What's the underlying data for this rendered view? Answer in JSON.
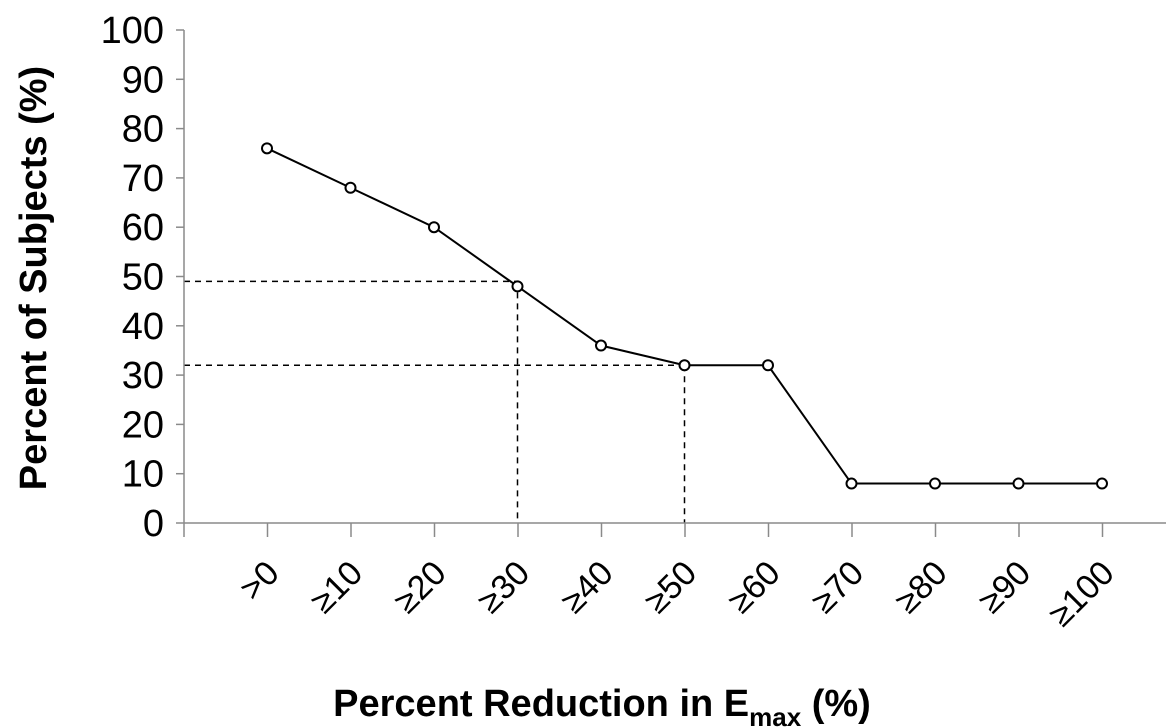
{
  "chart_data": {
    "type": "line",
    "title": "",
    "xlabel": "Percent Reduction in E",
    "xlabel_sub": "max",
    "xlabel_suffix": " (%)",
    "ylabel": "Percent of Subjects (%)",
    "ylim": [
      0,
      100
    ],
    "yticks": [
      0,
      10,
      20,
      30,
      40,
      50,
      60,
      70,
      80,
      90,
      100
    ],
    "categories": [
      ">0",
      "≥10",
      "≥20",
      "≥30",
      "≥40",
      "≥50",
      "≥60",
      "≥70",
      "≥80",
      "≥90",
      "≥100"
    ],
    "series": [
      {
        "values": [
          76,
          68,
          60,
          48,
          36,
          32,
          32,
          8,
          8,
          8,
          8
        ]
      }
    ],
    "reference_lines": [
      {
        "category": "≥30",
        "value": 49
      },
      {
        "category": "≥50",
        "value": 32
      }
    ],
    "grid": false,
    "legend": "none",
    "colors": {
      "line": "#000000",
      "axis": "#8a8a8a"
    }
  }
}
